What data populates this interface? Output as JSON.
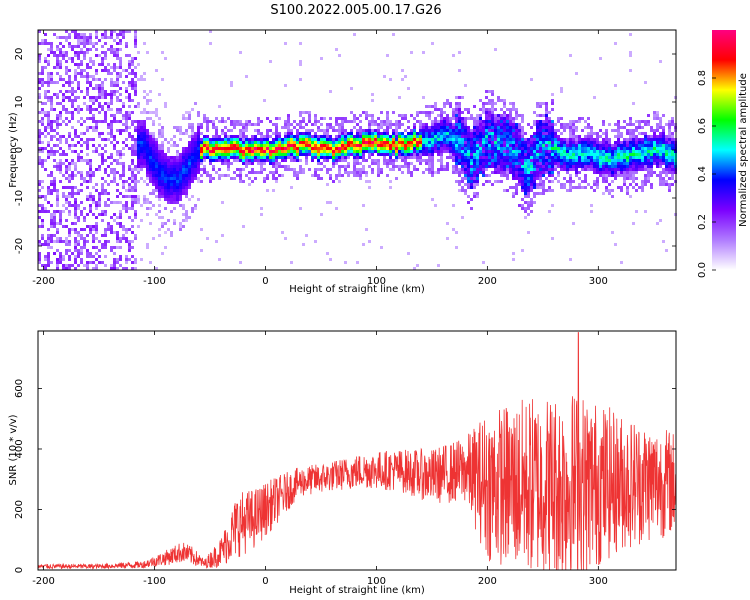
{
  "figure": {
    "title": "S100.2022.005.00.17.G26"
  },
  "chart_data": [
    {
      "type": "heatmap",
      "xlabel": "Height of straight line (km)",
      "ylabel": "Frequency (Hz)",
      "xlim": [
        -205,
        370
      ],
      "ylim": [
        -25,
        25
      ],
      "xticks": [
        -200,
        -100,
        0,
        100,
        200,
        300
      ],
      "yticks": [
        -20,
        -10,
        0,
        10,
        20
      ],
      "colorbar": {
        "label": "Normalized spectral amplitude",
        "range": [
          0,
          1
        ],
        "ticks": [
          "0.0",
          "0.2",
          "0.4",
          "0.6",
          "0.8"
        ],
        "tick_values": [
          0.0,
          0.2,
          0.4,
          0.6,
          0.8
        ],
        "colors": [
          "#ffffff",
          "#b07cff",
          "#7b00ff",
          "#0000ff",
          "#00ffff",
          "#00ff00",
          "#ffff00",
          "#ff0000",
          "#ff0080"
        ]
      },
      "ridge": [
        {
          "x": -200,
          "f": 0
        },
        {
          "x": -130,
          "f": 0
        },
        {
          "x": -110,
          "f": 1
        },
        {
          "x": -95,
          "f": -5
        },
        {
          "x": -80,
          "f": -6
        },
        {
          "x": -70,
          "f": -4
        },
        {
          "x": -60,
          "f": 0
        },
        {
          "x": -40,
          "f": 0.5
        },
        {
          "x": -20,
          "f": 0
        },
        {
          "x": 0,
          "f": 0
        },
        {
          "x": 20,
          "f": 0.5
        },
        {
          "x": 40,
          "f": 1
        },
        {
          "x": 60,
          "f": 0
        },
        {
          "x": 80,
          "f": 1
        },
        {
          "x": 100,
          "f": 1.5
        },
        {
          "x": 120,
          "f": 1
        },
        {
          "x": 140,
          "f": 2
        },
        {
          "x": 160,
          "f": 3
        },
        {
          "x": 175,
          "f": 2
        },
        {
          "x": 185,
          "f": -2
        },
        {
          "x": 200,
          "f": 2
        },
        {
          "x": 220,
          "f": 1
        },
        {
          "x": 235,
          "f": -4
        },
        {
          "x": 250,
          "f": 1
        },
        {
          "x": 270,
          "f": -1
        },
        {
          "x": 290,
          "f": -1
        },
        {
          "x": 310,
          "f": -2
        },
        {
          "x": 330,
          "f": -1
        },
        {
          "x": 350,
          "f": 0
        },
        {
          "x": 370,
          "f": -1
        }
      ],
      "grid": false
    },
    {
      "type": "line",
      "xlabel": "Height of straight line (km)",
      "ylabel": "SNR (10 * v/v)",
      "xlim": [
        -205,
        370
      ],
      "ylim": [
        0,
        790
      ],
      "xticks": [
        -200,
        -100,
        0,
        100,
        200,
        300
      ],
      "yticks": [
        0,
        200,
        400,
        600
      ],
      "series": [
        {
          "color": "#ee3333",
          "envelope": [
            {
              "x": -205,
              "mean": 12,
              "spread": 8
            },
            {
              "x": -150,
              "mean": 12,
              "spread": 8
            },
            {
              "x": -110,
              "mean": 18,
              "spread": 12
            },
            {
              "x": -90,
              "mean": 40,
              "spread": 25
            },
            {
              "x": -75,
              "mean": 60,
              "spread": 35
            },
            {
              "x": -65,
              "mean": 45,
              "spread": 30
            },
            {
              "x": -55,
              "mean": 20,
              "spread": 15
            },
            {
              "x": -40,
              "mean": 60,
              "spread": 50
            },
            {
              "x": -25,
              "mean": 150,
              "spread": 110
            },
            {
              "x": -10,
              "mean": 170,
              "spread": 100
            },
            {
              "x": 10,
              "mean": 230,
              "spread": 80
            },
            {
              "x": 30,
              "mean": 290,
              "spread": 50
            },
            {
              "x": 60,
              "mean": 310,
              "spread": 50
            },
            {
              "x": 90,
              "mean": 330,
              "spread": 60
            },
            {
              "x": 120,
              "mean": 330,
              "spread": 70
            },
            {
              "x": 150,
              "mean": 310,
              "spread": 90
            },
            {
              "x": 180,
              "mean": 330,
              "spread": 110
            },
            {
              "x": 200,
              "mean": 280,
              "spread": 250
            },
            {
              "x": 240,
              "mean": 280,
              "spread": 300
            },
            {
              "x": 280,
              "mean": 280,
              "spread": 320
            },
            {
              "x": 320,
              "mean": 290,
              "spread": 230
            },
            {
              "x": 370,
              "mean": 290,
              "spread": 170
            }
          ],
          "peak": {
            "x": 282,
            "y": 785
          }
        }
      ],
      "grid": false
    }
  ]
}
